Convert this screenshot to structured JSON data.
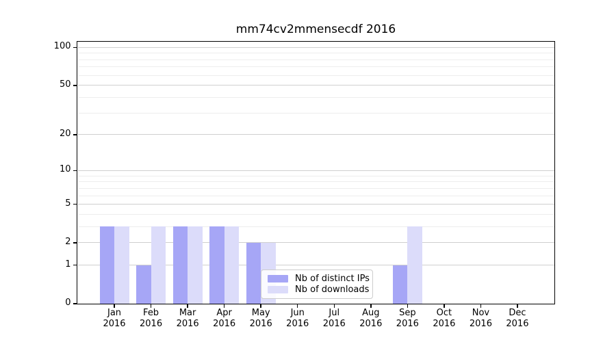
{
  "colors": {
    "background": "#ffffff",
    "spine": "#000000",
    "grid_major": "#cfcfcf",
    "grid_minor": "#ededed",
    "text": "#000000",
    "legend_border": "#cccccc"
  },
  "chart_data": {
    "type": "bar",
    "title": "mm74cv2mmensecdf 2016",
    "x_tick_labels": [
      {
        "month": "Jan",
        "year": "2016"
      },
      {
        "month": "Feb",
        "year": "2016"
      },
      {
        "month": "Mar",
        "year": "2016"
      },
      {
        "month": "Apr",
        "year": "2016"
      },
      {
        "month": "May",
        "year": "2016"
      },
      {
        "month": "Jun",
        "year": "2016"
      },
      {
        "month": "Jul",
        "year": "2016"
      },
      {
        "month": "Aug",
        "year": "2016"
      },
      {
        "month": "Sep",
        "year": "2016"
      },
      {
        "month": "Oct",
        "year": "2016"
      },
      {
        "month": "Nov",
        "year": "2016"
      },
      {
        "month": "Dec",
        "year": "2016"
      }
    ],
    "series": [
      {
        "name": "Nb of distinct IPs",
        "color": "#a6a6f6",
        "values": [
          3,
          1,
          3,
          3,
          2,
          0,
          0,
          0,
          1,
          0,
          0,
          0
        ]
      },
      {
        "name": "Nb of downloads",
        "color": "#dcdcfa",
        "values": [
          3,
          3,
          3,
          3,
          2,
          0,
          0,
          0,
          3,
          0,
          0,
          0
        ]
      }
    ],
    "yscale": "log1p",
    "ylim": [
      0,
      111
    ],
    "major_yticks": [
      100,
      50,
      20,
      10,
      5,
      2,
      1,
      0
    ],
    "minor_yticks": [
      90,
      80,
      70,
      60,
      40,
      30,
      9,
      8,
      7,
      6,
      4,
      3
    ],
    "grid": true,
    "legend_position": "lower-center-inside"
  }
}
